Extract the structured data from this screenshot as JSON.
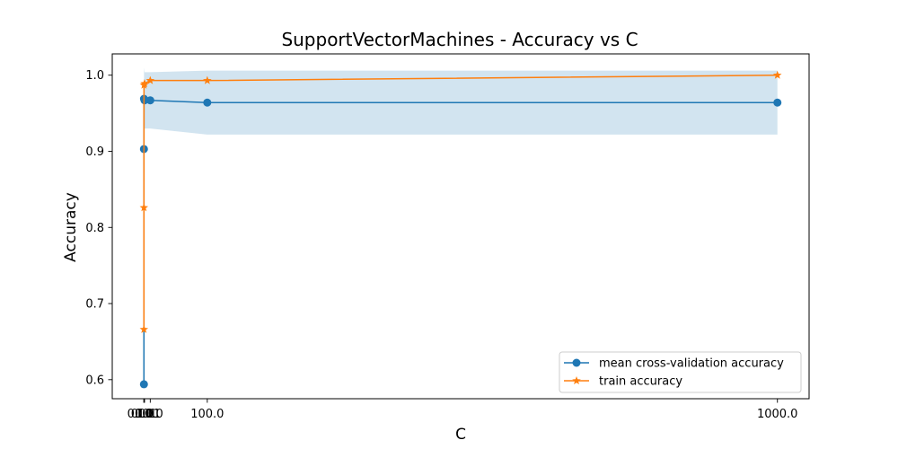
{
  "chart_data": {
    "type": "line",
    "title": "SupportVectorMachines - Accuracy vs C",
    "xlabel": "C",
    "ylabel": "Accuracy",
    "x": [
      0.001,
      0.01,
      0.1,
      1.0,
      10.0,
      100.0,
      1000.0
    ],
    "x_tick_values": [
      0.001,
      0.01,
      0.1,
      1.0,
      10.0,
      100.0,
      1000.0
    ],
    "x_tick_labels": [
      "0.001",
      "0.01",
      "0.1",
      "1.0",
      "10.0",
      "100.0",
      "1000.0"
    ],
    "y_ticks": [
      0.6,
      0.7,
      0.8,
      0.9,
      1.0
    ],
    "y_tick_labels": [
      "0.6",
      "0.7",
      "0.8",
      "0.9",
      "1.0"
    ],
    "xlim": [
      -49.999,
      1050.0
    ],
    "ylim": [
      0.575,
      1.028
    ],
    "grid": false,
    "legend_position": "lower-right",
    "series": [
      {
        "name": "mean cross-validation accuracy",
        "marker": "circle",
        "color": "#1f77b4",
        "values": [
          0.594,
          0.903,
          0.969,
          0.967,
          0.967,
          0.964,
          0.964
        ]
      },
      {
        "name": "train accuracy",
        "marker": "star",
        "color": "#ff7f0e",
        "values": [
          0.666,
          0.826,
          0.987,
          0.989,
          0.993,
          0.993,
          1.0
        ]
      }
    ],
    "band": {
      "color": "#1f77b4",
      "opacity": 0.2,
      "upper": [
        0.62,
        0.93,
        1.01,
        1.004,
        1.004,
        1.006,
        1.006
      ],
      "lower": [
        0.568,
        0.876,
        0.93,
        0.93,
        0.93,
        0.922,
        0.922
      ]
    }
  }
}
